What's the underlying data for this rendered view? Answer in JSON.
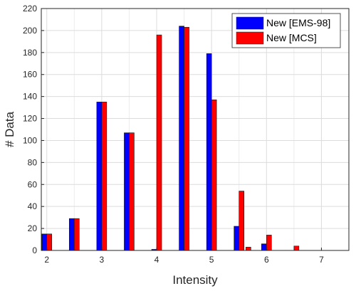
{
  "chart_data": {
    "type": "bar",
    "title": "",
    "xlabel": "Intensity",
    "ylabel": "# Data",
    "xlim": [
      1.9,
      7.5
    ],
    "ylim": [
      0,
      220
    ],
    "xticks": [
      2,
      3,
      4,
      5,
      6,
      7
    ],
    "yticks": [
      0,
      20,
      40,
      60,
      80,
      100,
      120,
      140,
      160,
      180,
      200,
      220
    ],
    "grid": true,
    "legend": "top-right",
    "series": [
      {
        "name": "New [EMS-98]",
        "color": "#0000ff",
        "x": [
          2,
          2.5,
          3,
          3.5,
          4,
          4.5,
          5,
          5.5,
          6
        ],
        "values": [
          15,
          29,
          135,
          107,
          1,
          204,
          179,
          22,
          6
        ]
      },
      {
        "name": "New [MCS]",
        "color": "#ff0000",
        "x": [
          2,
          2.5,
          3,
          3.5,
          4,
          4.5,
          5,
          5.5,
          5.625,
          6,
          6.5
        ],
        "values": [
          15,
          29,
          135,
          107,
          196,
          203,
          137,
          54,
          3,
          14,
          4
        ]
      }
    ]
  }
}
